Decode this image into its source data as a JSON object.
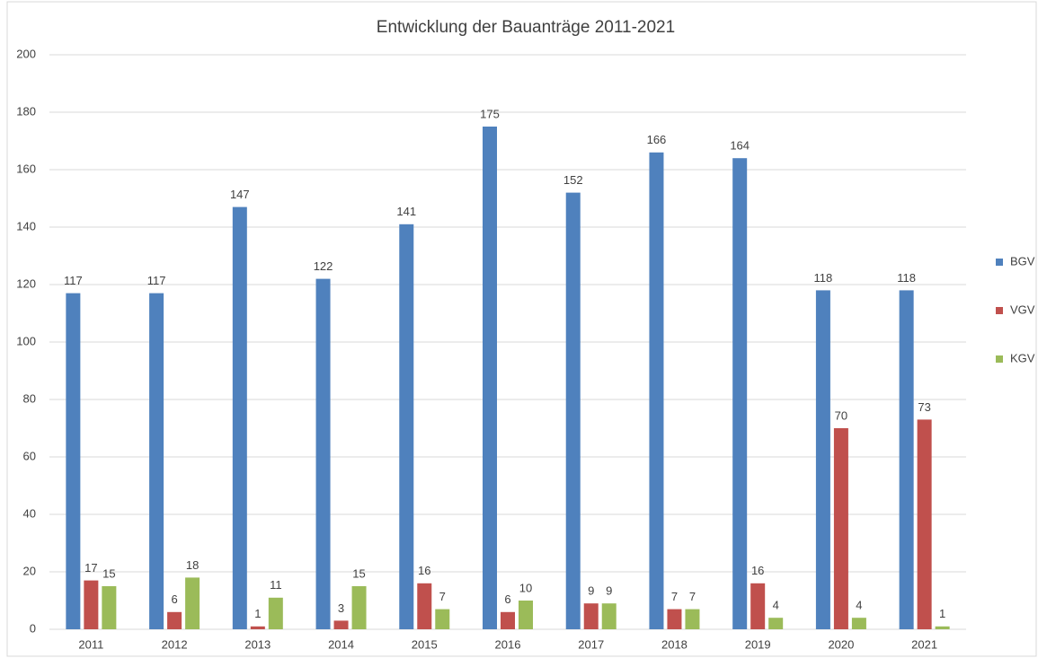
{
  "chart_data": {
    "type": "bar",
    "title": "Entwicklung der Bauanträge 2011-2021",
    "categories": [
      "2011",
      "2012",
      "2013",
      "2014",
      "2015",
      "2016",
      "2017",
      "2018",
      "2019",
      "2020",
      "2021"
    ],
    "series": [
      {
        "name": "BGV",
        "color": "#4f81bd",
        "values": [
          117,
          117,
          147,
          122,
          141,
          175,
          152,
          166,
          164,
          118,
          118
        ]
      },
      {
        "name": "VGV",
        "color": "#c0504d",
        "values": [
          17,
          6,
          1,
          3,
          16,
          6,
          9,
          7,
          16,
          70,
          73
        ]
      },
      {
        "name": "KGV",
        "color": "#9bbb59",
        "values": [
          15,
          18,
          11,
          15,
          7,
          10,
          9,
          7,
          4,
          4,
          1
        ]
      }
    ],
    "ylim": [
      0,
      200
    ],
    "yticks": [
      0,
      20,
      40,
      60,
      80,
      100,
      120,
      140,
      160,
      180,
      200
    ],
    "grid": true,
    "legend": "right"
  }
}
